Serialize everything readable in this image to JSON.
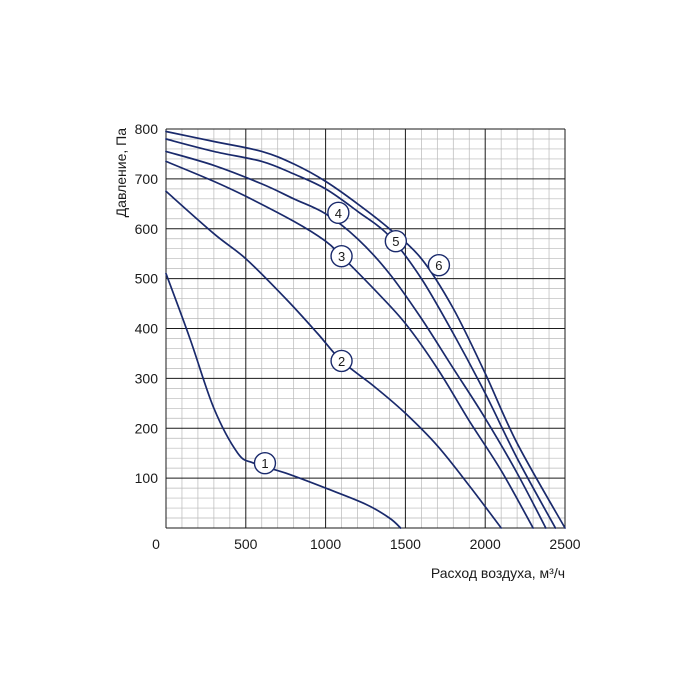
{
  "chart_data": {
    "type": "line",
    "title": "",
    "xlabel": "Расход воздуха, м³/ч",
    "ylabel": "Давление, Па",
    "xlim": [
      0,
      2500
    ],
    "ylim": [
      0,
      800
    ],
    "x_ticks": [
      "0",
      "500",
      "1000",
      "1500",
      "2000",
      "2500"
    ],
    "y_ticks": [
      "100",
      "200",
      "300",
      "400",
      "500",
      "600",
      "700",
      "800"
    ],
    "grid": true,
    "curve_color": "#1a2a6c",
    "grid_major_color": "#1a1a1a",
    "grid_minor_color": "#b8b8b8",
    "series": [
      {
        "name": "1",
        "label_at": [
          620,
          130
        ],
        "points": [
          [
            0,
            510
          ],
          [
            150,
            380
          ],
          [
            300,
            240
          ],
          [
            450,
            150
          ],
          [
            550,
            130
          ],
          [
            750,
            110
          ],
          [
            1000,
            80
          ],
          [
            1250,
            48
          ],
          [
            1400,
            20
          ],
          [
            1470,
            0
          ]
        ]
      },
      {
        "name": "2",
        "label_at": [
          1100,
          335
        ],
        "points": [
          [
            0,
            675
          ],
          [
            300,
            590
          ],
          [
            500,
            540
          ],
          [
            750,
            460
          ],
          [
            950,
            390
          ],
          [
            1100,
            335
          ],
          [
            1300,
            285
          ],
          [
            1500,
            230
          ],
          [
            1700,
            165
          ],
          [
            1900,
            85
          ],
          [
            2100,
            0
          ]
        ]
      },
      {
        "name": "3",
        "label_at": [
          1100,
          545
        ],
        "points": [
          [
            0,
            735
          ],
          [
            300,
            695
          ],
          [
            500,
            665
          ],
          [
            800,
            615
          ],
          [
            1000,
            575
          ],
          [
            1100,
            545
          ],
          [
            1300,
            480
          ],
          [
            1500,
            410
          ],
          [
            1700,
            320
          ],
          [
            1900,
            215
          ],
          [
            2100,
            115
          ],
          [
            2300,
            0
          ]
        ]
      },
      {
        "name": "4",
        "label_at": [
          1080,
          632
        ],
        "points": [
          [
            0,
            755
          ],
          [
            300,
            727
          ],
          [
            600,
            690
          ],
          [
            800,
            660
          ],
          [
            1000,
            630
          ],
          [
            1200,
            580
          ],
          [
            1400,
            510
          ],
          [
            1600,
            420
          ],
          [
            1800,
            320
          ],
          [
            2000,
            220
          ],
          [
            2200,
            110
          ],
          [
            2380,
            0
          ]
        ]
      },
      {
        "name": "5",
        "label_at": [
          1440,
          575
        ],
        "points": [
          [
            0,
            780
          ],
          [
            300,
            755
          ],
          [
            600,
            735
          ],
          [
            800,
            710
          ],
          [
            1000,
            680
          ],
          [
            1200,
            635
          ],
          [
            1400,
            585
          ],
          [
            1600,
            500
          ],
          [
            1800,
            390
          ],
          [
            2000,
            270
          ],
          [
            2200,
            140
          ],
          [
            2440,
            0
          ]
        ]
      },
      {
        "name": "6",
        "label_at": [
          1710,
          527
        ],
        "points": [
          [
            0,
            795
          ],
          [
            300,
            775
          ],
          [
            600,
            755
          ],
          [
            800,
            730
          ],
          [
            1000,
            695
          ],
          [
            1200,
            650
          ],
          [
            1400,
            600
          ],
          [
            1600,
            540
          ],
          [
            1800,
            440
          ],
          [
            2000,
            310
          ],
          [
            2200,
            170
          ],
          [
            2500,
            0
          ]
        ]
      }
    ]
  }
}
